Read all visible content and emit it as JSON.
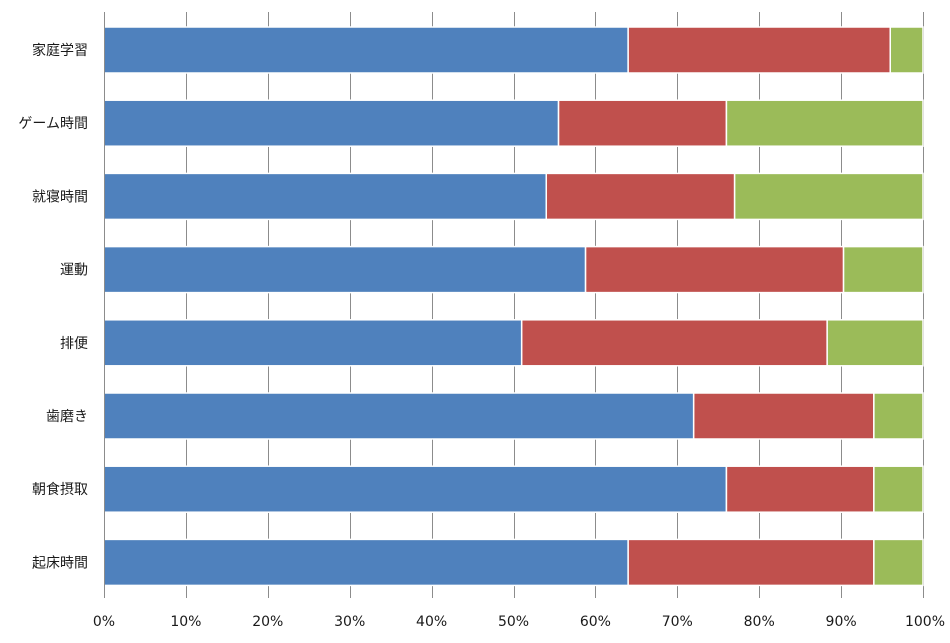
{
  "chart_data": {
    "type": "bar",
    "orientation": "horizontal",
    "stacked": true,
    "percent_stacked": true,
    "categories": [
      "家庭学習",
      "ゲーム時間",
      "就寝時間",
      "運動",
      "排便",
      "歯磨き",
      "朝食摂取",
      "起床時間"
    ],
    "series": [
      {
        "color": "#4f81bd",
        "values": [
          64,
          55.5,
          54,
          58.8,
          51,
          72,
          76,
          64
        ]
      },
      {
        "color": "#c0504d",
        "values": [
          32,
          20.5,
          23,
          31.5,
          37.3,
          22,
          18,
          30
        ]
      },
      {
        "color": "#9bbb59",
        "values": [
          4,
          24,
          23,
          9.7,
          11.7,
          6,
          6,
          6
        ]
      }
    ],
    "xlim": [
      0,
      100
    ],
    "x_ticks": [
      "0%",
      "10%",
      "20%",
      "30%",
      "40%",
      "50%",
      "60%",
      "70%",
      "80%",
      "90%",
      "100%"
    ],
    "grid": "vertical",
    "legend": "none",
    "title": "",
    "xlabel": "",
    "ylabel": ""
  }
}
